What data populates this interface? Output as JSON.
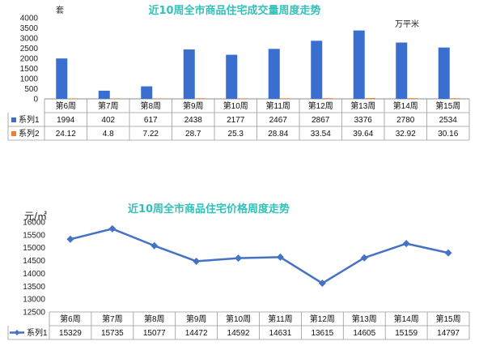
{
  "chart_data": [
    {
      "type": "bar",
      "title": "近10周全市商品住宅成交量周度走势",
      "ylabel": "套",
      "unit_label": "万平米",
      "ylim": [
        0,
        4000
      ],
      "yticks": [
        0,
        500,
        1000,
        1500,
        2000,
        2500,
        3000,
        3500,
        4000
      ],
      "categories": [
        "第6周",
        "第7周",
        "第8周",
        "第9周",
        "第10周",
        "第11周",
        "第12周",
        "第13周",
        "第14周",
        "第15周"
      ],
      "series": [
        {
          "name": "系列1",
          "color": "#3a6fd0",
          "values": [
            1994,
            402,
            617,
            2438,
            2177,
            2467,
            2867,
            3376,
            2780,
            2534
          ]
        },
        {
          "name": "系列2",
          "color": "#ed7d31",
          "values": [
            24.12,
            4.8,
            7.22,
            28.7,
            25.3,
            28.84,
            33.54,
            39.64,
            32.92,
            30.16
          ]
        }
      ],
      "display_values": [
        [
          "1994",
          "402",
          "617",
          "2438",
          "2177",
          "2467",
          "2867",
          "3376",
          "2780",
          "2534"
        ],
        [
          "24.12",
          "4.8",
          "7.22",
          "28.7",
          "25.3",
          "28.84",
          "33.54",
          "39.64",
          "32.92",
          "30.16"
        ]
      ],
      "legend": "data-table"
    },
    {
      "type": "line",
      "title": "近10周全市商品住宅价格周度走势",
      "ylabel": "元/㎡",
      "ylim": [
        12500,
        16000
      ],
      "yticks": [
        12500,
        13000,
        13500,
        14000,
        14500,
        15000,
        15500,
        16000
      ],
      "categories": [
        "第6周",
        "第7周",
        "第8周",
        "第9周",
        "第10周",
        "第11周",
        "第12周",
        "第13周",
        "第14周",
        "第15周"
      ],
      "series": [
        {
          "name": "系列1",
          "color": "#4472c4",
          "values": [
            15329,
            15735,
            15077,
            14472,
            14592,
            14631,
            13615,
            14605,
            15159,
            14797
          ]
        }
      ],
      "legend": "data-table"
    }
  ]
}
